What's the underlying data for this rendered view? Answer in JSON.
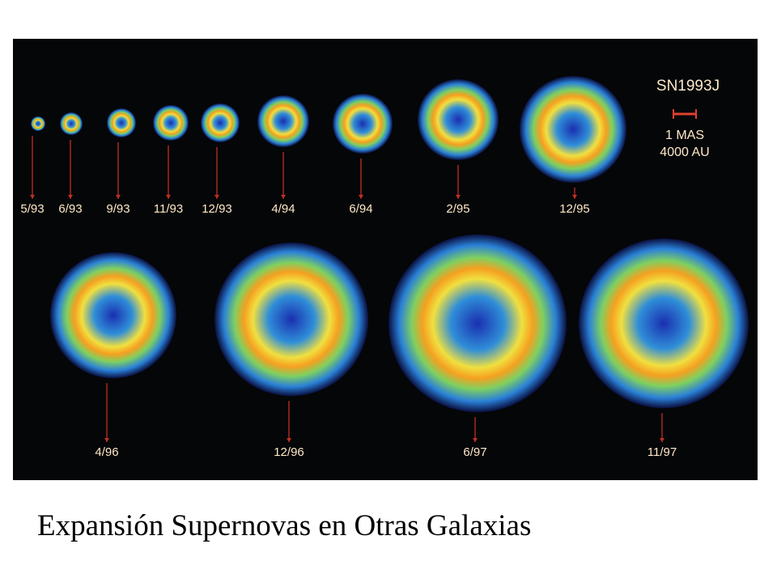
{
  "image": {
    "labels": [
      "5/93",
      "6/93",
      "9/93",
      "11/93",
      "12/93",
      "4/94",
      "6/94",
      "2/95",
      "12/95",
      "4/96",
      "12/96",
      "6/97",
      "11/97"
    ],
    "scale": {
      "title": "SN1993J",
      "size": "1 MAS",
      "distance": "4000 AU"
    }
  },
  "caption": "Expansión Supernovas en Otras Galaxias"
}
